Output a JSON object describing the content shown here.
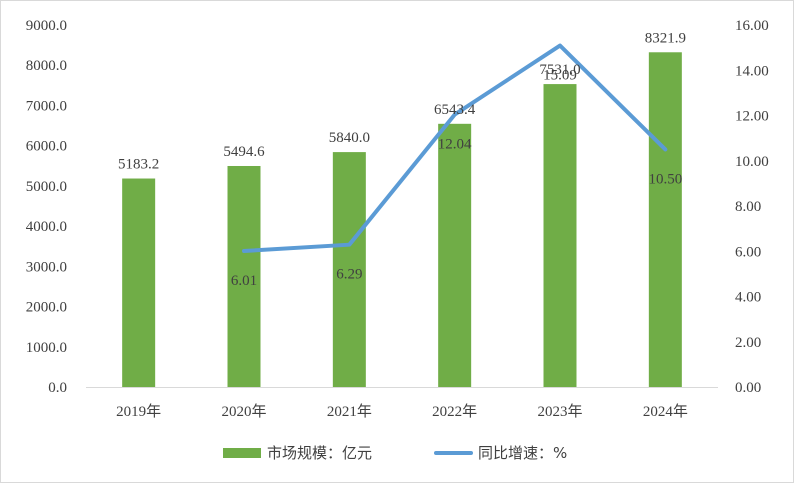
{
  "chart_data": {
    "type": "bar",
    "categories": [
      "2019年",
      "2020年",
      "2021年",
      "2022年",
      "2023年",
      "2024年"
    ],
    "series": [
      {
        "name": "市场规模：亿元",
        "type": "bar",
        "axis": "left",
        "color": "#70ad47",
        "values": [
          5183.2,
          5494.6,
          5840.0,
          6543.4,
          7531.0,
          8321.9
        ],
        "labels": [
          "5183.2",
          "5494.6",
          "5840.0",
          "6543.4",
          "7531.0",
          "8321.9"
        ]
      },
      {
        "name": "同比增速：%",
        "type": "line",
        "axis": "right",
        "color": "#5b9bd5",
        "values": [
          null,
          6.01,
          6.29,
          12.04,
          15.09,
          10.5
        ],
        "labels": [
          "",
          "6.01",
          "6.29",
          "12.04",
          "15.09",
          "10.50"
        ]
      }
    ],
    "y_left": {
      "min": 0,
      "max": 9000,
      "ticks": [
        "0.0",
        "1000.0",
        "2000.0",
        "3000.0",
        "4000.0",
        "5000.0",
        "6000.0",
        "7000.0",
        "8000.0",
        "9000.0"
      ]
    },
    "y_right": {
      "min": 0,
      "max": 16,
      "ticks": [
        "0.00",
        "2.00",
        "4.00",
        "6.00",
        "8.00",
        "10.00",
        "12.00",
        "14.00",
        "16.00"
      ]
    },
    "grid": false,
    "legend_position": "bottom"
  }
}
